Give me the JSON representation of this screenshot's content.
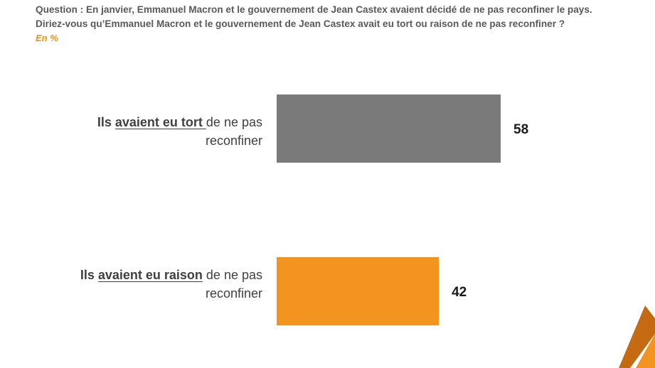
{
  "header": {
    "question_line1": "Question : En janvier, Emmanuel Macron et le gouvernement de Jean Castex avaient décidé de ne pas reconfiner le pays.",
    "question_line2": "Diriez-vous qu’Emmanuel Macron et le gouvernement de Jean Castex avait eu tort ou raison de ne pas reconfiner ?",
    "unit": "En %"
  },
  "labels": [
    {
      "prefix": "Ils ",
      "emphasis": "avaient eu tort ",
      "suffix": "de ne pas",
      "line2": "reconfiner"
    },
    {
      "prefix": "Ils ",
      "emphasis": "avaient eu raison",
      "suffix": " de ne pas",
      "line2": "reconfiner"
    }
  ],
  "chart_data": {
    "type": "bar",
    "orientation": "horizontal",
    "categories": [
      "Ils avaient eu tort de ne pas reconfiner",
      "Ils avaient eu raison de ne pas reconfiner"
    ],
    "values": [
      58,
      42
    ],
    "value_labels": [
      "58",
      "42"
    ],
    "colors": [
      "#7a7a7a",
      "#f39420"
    ],
    "xlim": [
      0,
      100
    ],
    "grid": false,
    "title": ""
  },
  "logo": {
    "icon": "logo-mark-icon",
    "color_dark": "#c46a12",
    "color_light": "#f39420"
  }
}
